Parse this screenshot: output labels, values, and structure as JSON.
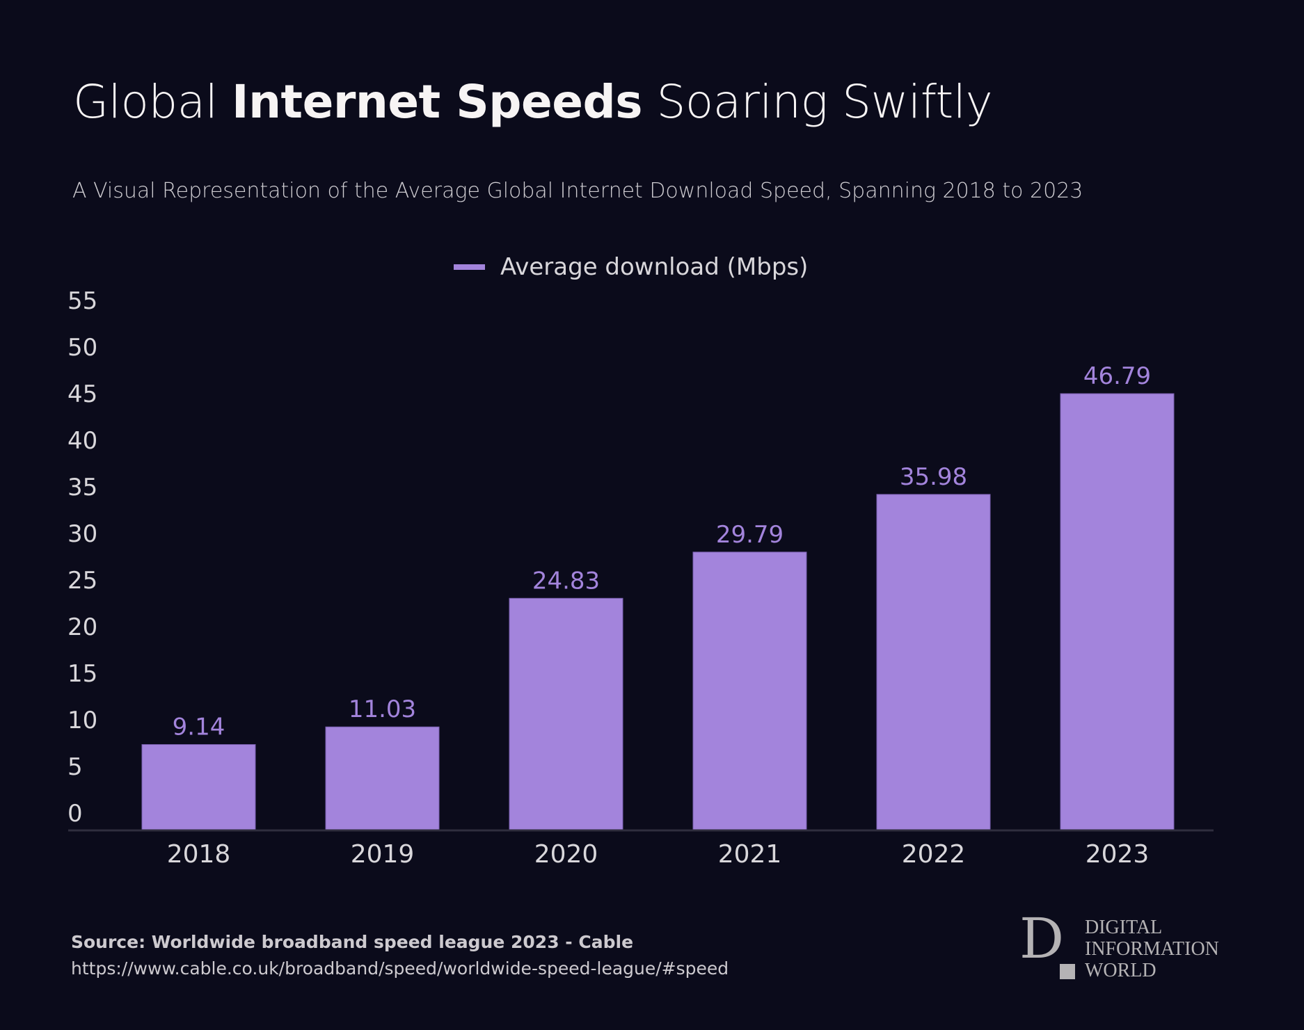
{
  "header": {
    "title_pre": "Global ",
    "title_bold": "Internet Speeds",
    "title_post": " Soaring Swiftly",
    "subtitle": "A Visual Representation of the Average Global Internet Download Speed, Spanning 2018 to 2023"
  },
  "legend": {
    "label": "Average download (Mbps)",
    "color": "#a384dc"
  },
  "chart_data": {
    "type": "bar",
    "title": "Global Internet Speeds Soaring Swiftly",
    "subtitle": "A Visual Representation of the Average Global Internet Download Speed, Spanning 2018 to 2023",
    "xlabel": "",
    "ylabel": "",
    "categories": [
      "2018",
      "2019",
      "2020",
      "2021",
      "2022",
      "2023"
    ],
    "series": [
      {
        "name": "Average download (Mbps)",
        "values": [
          9.14,
          11.03,
          24.83,
          29.79,
          35.98,
          46.79
        ],
        "color": "#a384dc"
      }
    ],
    "data_labels": [
      "9.14",
      "11.03",
      "24.83",
      "29.79",
      "35.98",
      "46.79"
    ],
    "ylim": [
      0,
      55
    ],
    "yticks": [
      0,
      5,
      10,
      15,
      20,
      25,
      30,
      35,
      40,
      45,
      50,
      55
    ],
    "grid": false,
    "legend_position": "top-center"
  },
  "footer": {
    "source": "Source: Worldwide broadband speed league 2023 - Cable",
    "url": "https://www.cable.co.uk/broadband/speed/worldwide-speed-league/#speed"
  },
  "logo": {
    "letter": "D",
    "lines": [
      "DIGITAL",
      "INFORMATION",
      "WORLD"
    ]
  },
  "colors": {
    "background": "#0b0b1b",
    "bar": "#a384dc",
    "data_label": "#a384dc",
    "axis_text": "#d9d7db"
  }
}
